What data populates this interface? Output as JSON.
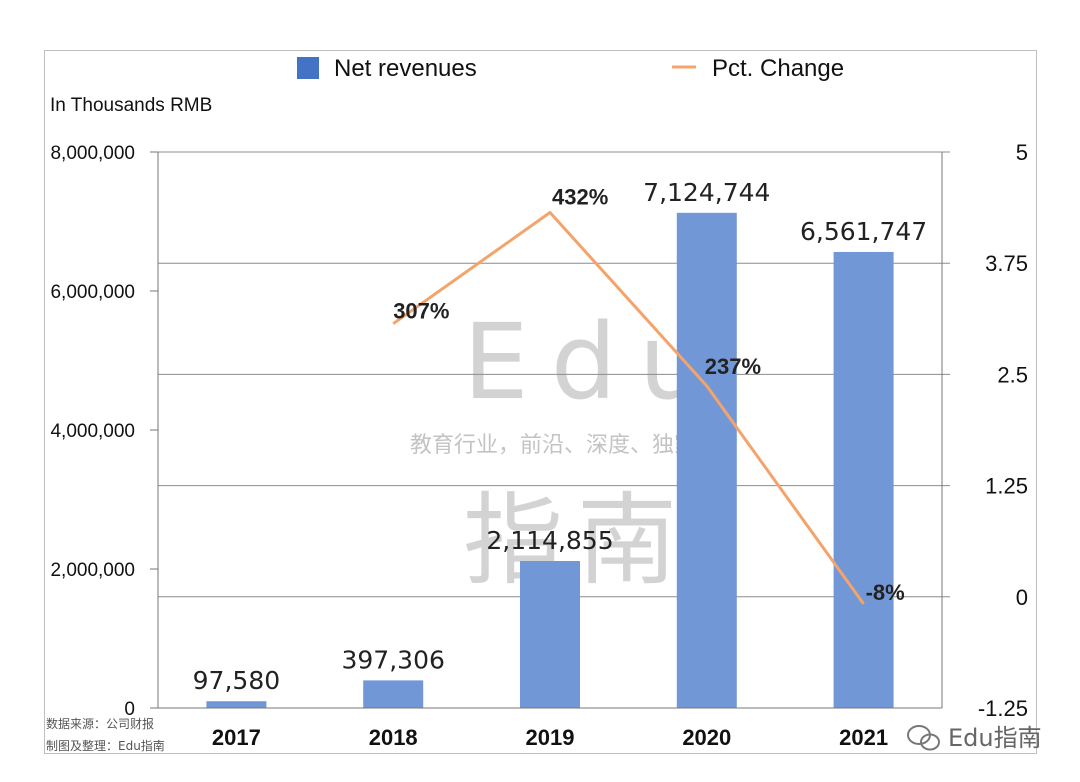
{
  "chart_data": {
    "type": "bar",
    "unit_label": "In Thousands RMB",
    "categories": [
      "2017",
      "2018",
      "2019",
      "2020",
      "2021"
    ],
    "series": [
      {
        "name": "Net revenues",
        "type": "bar",
        "axis": "left",
        "color": "#4472c4",
        "values": [
          97580,
          397306,
          2114855,
          7124744,
          6561747
        ],
        "labels": [
          "97,580",
          "397,306",
          "2,114,855",
          "7,124,744",
          "6,561,747"
        ]
      },
      {
        "name": "Pct. Change",
        "type": "line",
        "axis": "right",
        "color": "#f4a46a",
        "values": [
          null,
          3.07,
          4.32,
          2.37,
          -0.08
        ],
        "labels": [
          null,
          "307%",
          "432%",
          "237%",
          "-8%"
        ]
      }
    ],
    "y_left": {
      "range": [
        0,
        8000000
      ],
      "ticks": [
        0,
        2000000,
        4000000,
        6000000,
        8000000
      ],
      "tick_labels": [
        "0",
        "2,000,000",
        "4,000,000",
        "6,000,000",
        "8,000,000"
      ]
    },
    "y_right": {
      "range": [
        -1.25,
        5
      ],
      "ticks": [
        -1.25,
        0,
        1.25,
        2.5,
        3.75,
        5
      ],
      "tick_labels": [
        "-1.25",
        "0",
        "1.25",
        "2.5",
        "3.75",
        "5"
      ]
    },
    "grid": true,
    "legend_position": "top"
  },
  "source_note": {
    "line1": "数据来源：公司财报",
    "line2": "制图及整理：Edu指南"
  },
  "watermark": {
    "latin": "Edu",
    "slogan": "教育行业，前沿、深度、独家",
    "chinese": "指南",
    "corner": "Edu指南"
  }
}
